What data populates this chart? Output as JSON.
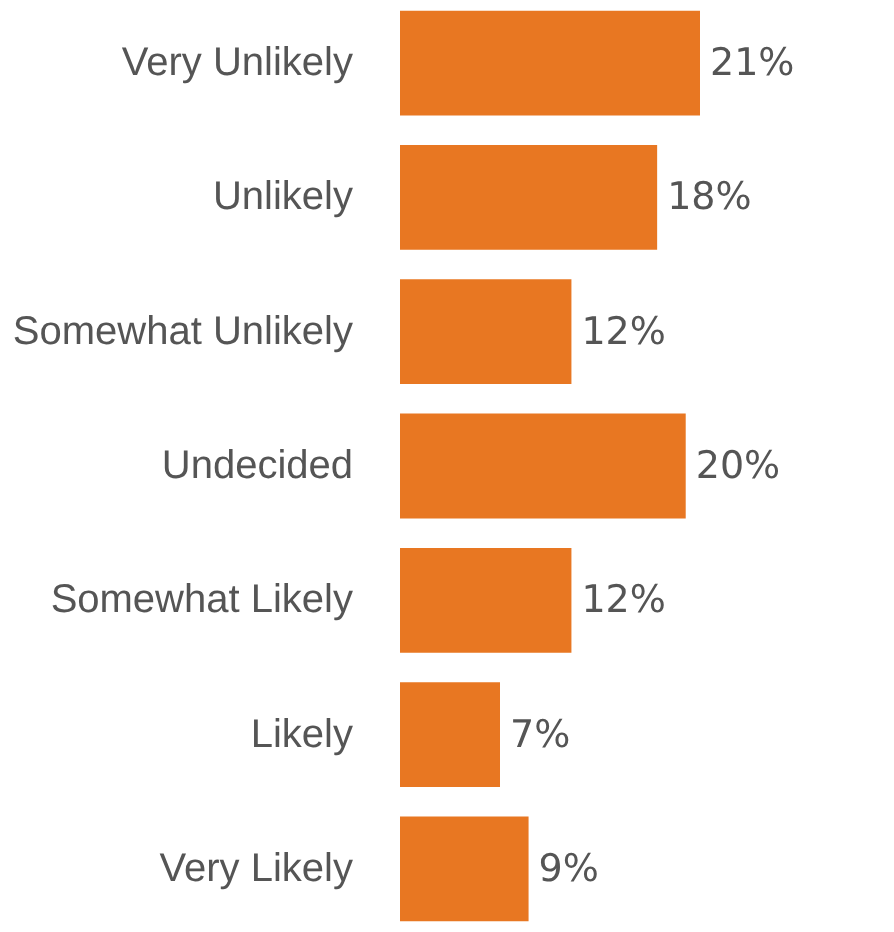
{
  "chart_data": {
    "type": "bar",
    "orientation": "horizontal",
    "categories": [
      "Very Unlikely",
      "Unlikely",
      "Somewhat Unlikely",
      "Undecided",
      "Somewhat Likely",
      "Likely",
      "Very Likely"
    ],
    "values": [
      21,
      18,
      12,
      20,
      12,
      7,
      9
    ],
    "value_labels": [
      "21%",
      "18%",
      "12%",
      "20%",
      "12%",
      "7%",
      "9%"
    ],
    "color": "#e87722"
  }
}
